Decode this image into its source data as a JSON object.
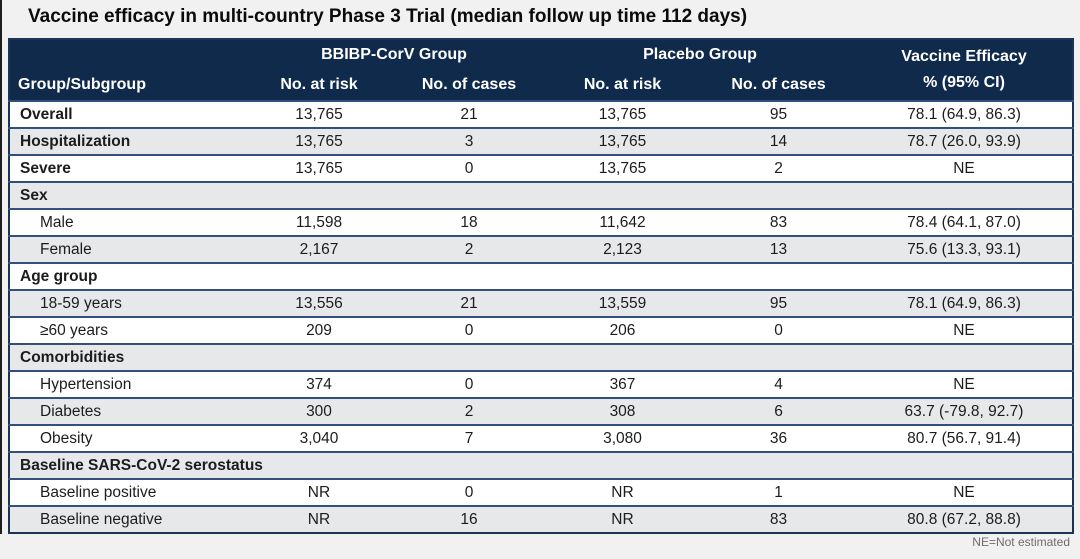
{
  "title": "Vaccine efficacy in multi-country Phase 3 Trial (median follow up time 112 days)",
  "table": {
    "header": {
      "group_subgroup": "Group/Subgroup",
      "bbibp_group": "BBIBP-CorV Group",
      "placebo_group": "Placebo Group",
      "efficacy_line1": "Vaccine Efficacy",
      "efficacy_line2": "% (95% CI)",
      "bbibp_no_at_risk": "No. at risk",
      "bbibp_no_of_cases": "No. of cases",
      "placebo_no_at_risk": "No. at risk",
      "placebo_no_of_cases": "No. of cases"
    },
    "rows": [
      {
        "type": "data",
        "label": "Overall",
        "bold": true,
        "indent": false,
        "values": [
          "13,765",
          "21",
          "13,765",
          "95",
          "78.1 (64.9, 86.3)"
        ]
      },
      {
        "type": "data",
        "label": "Hospitalization",
        "bold": true,
        "indent": false,
        "values": [
          "13,765",
          "3",
          "13,765",
          "14",
          "78.7 (26.0, 93.9)"
        ]
      },
      {
        "type": "data",
        "label": "Severe",
        "bold": true,
        "indent": false,
        "values": [
          "13,765",
          "0",
          "13,765",
          "2",
          "NE"
        ]
      },
      {
        "type": "section",
        "label": "Sex"
      },
      {
        "type": "data",
        "label": "Male",
        "bold": false,
        "indent": true,
        "values": [
          "11,598",
          "18",
          "11,642",
          "83",
          "78.4 (64.1, 87.0)"
        ]
      },
      {
        "type": "data",
        "label": "Female",
        "bold": false,
        "indent": true,
        "values": [
          "2,167",
          "2",
          "2,123",
          "13",
          "75.6 (13.3, 93.1)"
        ]
      },
      {
        "type": "section",
        "label": "Age group"
      },
      {
        "type": "data",
        "label": "18-59 years",
        "bold": false,
        "indent": true,
        "values": [
          "13,556",
          "21",
          "13,559",
          "95",
          "78.1 (64.9, 86.3)"
        ]
      },
      {
        "type": "data",
        "label": "≥60 years",
        "bold": false,
        "indent": true,
        "values": [
          "209",
          "0",
          "206",
          "0",
          "NE"
        ]
      },
      {
        "type": "section",
        "label": "Comorbidities"
      },
      {
        "type": "data",
        "label": "Hypertension",
        "bold": false,
        "indent": true,
        "values": [
          "374",
          "0",
          "367",
          "4",
          "NE"
        ]
      },
      {
        "type": "data",
        "label": "Diabetes",
        "bold": false,
        "indent": true,
        "values": [
          "300",
          "2",
          "308",
          "6",
          "63.7 (-79.8, 92.7)"
        ]
      },
      {
        "type": "data",
        "label": "Obesity",
        "bold": false,
        "indent": true,
        "values": [
          "3,040",
          "7",
          "3,080",
          "36",
          "80.7 (56.7, 91.4)"
        ]
      },
      {
        "type": "section",
        "label": "Baseline SARS-CoV-2 serostatus"
      },
      {
        "type": "data",
        "label": "Baseline positive",
        "bold": false,
        "indent": true,
        "values": [
          "NR",
          "0",
          "NR",
          "1",
          "NE"
        ]
      },
      {
        "type": "data",
        "label": "Baseline negative",
        "bold": false,
        "indent": true,
        "values": [
          "NR",
          "16",
          "NR",
          "83",
          "80.8 (67.2, 88.8)"
        ]
      }
    ],
    "footnote": "NE=Not estimated"
  },
  "colors": {
    "header_bg": "#102a4c",
    "header_text": "#ffffff",
    "row_alt_bg": "#e7e8ea",
    "row_border": "#31507c",
    "table_outer_border": "#1d3356",
    "body_text": "#1c1c1c",
    "footnote_text": "#6d6d6d",
    "page_bg": "#f1f1f2"
  }
}
